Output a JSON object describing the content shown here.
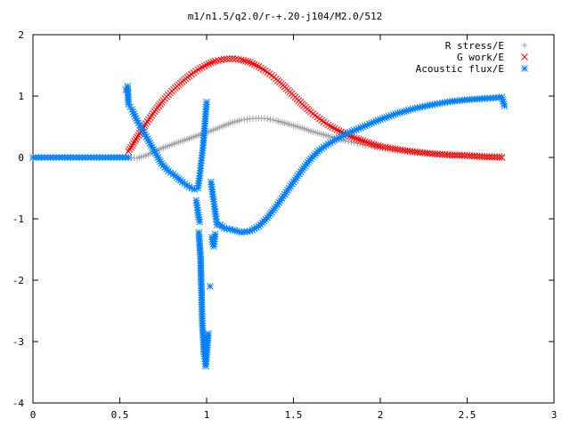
{
  "chart_data": {
    "type": "scatter",
    "title": "m1/n1.5/q2.0/r-+.20-j104/M2.0/512",
    "xlabel": "",
    "ylabel": "",
    "xlim": [
      0,
      3
    ],
    "ylim": [
      -4,
      2
    ],
    "x_ticks": [
      "0",
      "0.5",
      "1",
      "1.5",
      "2",
      "2.5",
      "3"
    ],
    "y_ticks": [
      "2",
      "1",
      "0",
      "-1",
      "-2",
      "-3",
      "-4"
    ],
    "grid": false,
    "legend_position": "top-right",
    "series": [
      {
        "name": "R stress/E",
        "marker": "plus",
        "color": "#a0a0a0",
        "points": [
          [
            0.55,
            0.0
          ],
          [
            0.6,
            -0.01
          ],
          [
            0.65,
            0.03
          ],
          [
            0.7,
            0.1
          ],
          [
            0.75,
            0.16
          ],
          [
            0.8,
            0.21
          ],
          [
            0.85,
            0.26
          ],
          [
            0.9,
            0.31
          ],
          [
            0.95,
            0.36
          ],
          [
            1.0,
            0.41
          ],
          [
            1.05,
            0.46
          ],
          [
            1.1,
            0.52
          ],
          [
            1.15,
            0.57
          ],
          [
            1.2,
            0.61
          ],
          [
            1.25,
            0.63
          ],
          [
            1.3,
            0.64
          ],
          [
            1.35,
            0.63
          ],
          [
            1.4,
            0.6
          ],
          [
            1.45,
            0.56
          ],
          [
            1.5,
            0.52
          ],
          [
            1.55,
            0.48
          ],
          [
            1.6,
            0.43
          ],
          [
            1.65,
            0.39
          ],
          [
            1.7,
            0.35
          ],
          [
            1.75,
            0.31
          ],
          [
            1.8,
            0.27
          ],
          [
            1.85,
            0.24
          ],
          [
            1.9,
            0.21
          ],
          [
            1.95,
            0.18
          ],
          [
            2.0,
            0.15
          ],
          [
            2.1,
            0.12
          ],
          [
            2.2,
            0.09
          ],
          [
            2.3,
            0.07
          ],
          [
            2.4,
            0.05
          ],
          [
            2.5,
            0.04
          ],
          [
            2.6,
            0.03
          ],
          [
            2.7,
            0.02
          ]
        ]
      },
      {
        "name": "G work/E",
        "marker": "cross",
        "color": "#ff0000",
        "points": [
          [
            0.55,
            0.1
          ],
          [
            0.6,
            0.33
          ],
          [
            0.65,
            0.55
          ],
          [
            0.7,
            0.75
          ],
          [
            0.75,
            0.93
          ],
          [
            0.8,
            1.08
          ],
          [
            0.85,
            1.21
          ],
          [
            0.9,
            1.33
          ],
          [
            0.95,
            1.43
          ],
          [
            1.0,
            1.51
          ],
          [
            1.05,
            1.57
          ],
          [
            1.1,
            1.6
          ],
          [
            1.15,
            1.61
          ],
          [
            1.2,
            1.59
          ],
          [
            1.25,
            1.55
          ],
          [
            1.3,
            1.48
          ],
          [
            1.35,
            1.39
          ],
          [
            1.4,
            1.28
          ],
          [
            1.45,
            1.15
          ],
          [
            1.5,
            1.01
          ],
          [
            1.55,
            0.87
          ],
          [
            1.6,
            0.74
          ],
          [
            1.65,
            0.63
          ],
          [
            1.7,
            0.53
          ],
          [
            1.75,
            0.45
          ],
          [
            1.8,
            0.38
          ],
          [
            1.85,
            0.32
          ],
          [
            1.9,
            0.27
          ],
          [
            1.95,
            0.22
          ],
          [
            2.0,
            0.18
          ],
          [
            2.1,
            0.13
          ],
          [
            2.2,
            0.09
          ],
          [
            2.3,
            0.06
          ],
          [
            2.4,
            0.04
          ],
          [
            2.5,
            0.03
          ],
          [
            2.6,
            0.01
          ],
          [
            2.7,
            0.0
          ]
        ]
      },
      {
        "name": "Acoustic flux/E",
        "marker": "star",
        "color": "#0080ff",
        "points": [
          [
            0.0,
            0.0
          ],
          [
            0.05,
            0.0
          ],
          [
            0.1,
            0.0
          ],
          [
            0.15,
            0.0
          ],
          [
            0.2,
            0.0
          ],
          [
            0.25,
            0.0
          ],
          [
            0.3,
            0.0
          ],
          [
            0.35,
            0.0
          ],
          [
            0.4,
            0.0
          ],
          [
            0.45,
            0.0
          ],
          [
            0.5,
            0.0
          ],
          [
            0.55,
            0.0
          ],
          [
            0.535,
            1.1
          ],
          [
            0.545,
            1.16
          ],
          [
            0.55,
            0.87
          ],
          [
            0.57,
            0.78
          ],
          [
            0.6,
            0.6
          ],
          [
            0.63,
            0.45
          ],
          [
            0.66,
            0.3
          ],
          [
            0.7,
            0.1
          ],
          [
            0.74,
            -0.1
          ],
          [
            0.78,
            -0.22
          ],
          [
            0.82,
            -0.3
          ],
          [
            0.86,
            -0.4
          ],
          [
            0.9,
            -0.48
          ],
          [
            0.93,
            -0.52
          ],
          [
            0.95,
            -0.5
          ],
          [
            0.96,
            -0.3
          ],
          [
            0.97,
            -0.05
          ],
          [
            0.98,
            0.2
          ],
          [
            0.99,
            0.55
          ],
          [
            1.0,
            0.9
          ],
          [
            0.94,
            -0.7
          ],
          [
            0.95,
            -0.9
          ],
          [
            0.96,
            -1.05
          ],
          [
            0.955,
            -1.22
          ],
          [
            0.965,
            -1.62
          ],
          [
            0.97,
            -2.13
          ],
          [
            0.975,
            -2.7
          ],
          [
            0.985,
            -3.2
          ],
          [
            0.995,
            -3.4
          ],
          [
            1.01,
            -2.87
          ],
          [
            1.02,
            -2.1
          ],
          [
            1.03,
            -1.3
          ],
          [
            1.04,
            -1.45
          ],
          [
            1.05,
            -1.25
          ],
          [
            1.025,
            -0.4
          ],
          [
            1.035,
            -0.6
          ],
          [
            1.045,
            -0.8
          ],
          [
            1.055,
            -1.0
          ],
          [
            1.06,
            -1.1
          ],
          [
            1.08,
            -1.1
          ],
          [
            1.1,
            -1.15
          ],
          [
            1.15,
            -1.18
          ],
          [
            1.2,
            -1.22
          ],
          [
            1.25,
            -1.2
          ],
          [
            1.3,
            -1.12
          ],
          [
            1.35,
            -0.98
          ],
          [
            1.4,
            -0.8
          ],
          [
            1.45,
            -0.6
          ],
          [
            1.5,
            -0.4
          ],
          [
            1.55,
            -0.2
          ],
          [
            1.6,
            -0.02
          ],
          [
            1.65,
            0.12
          ],
          [
            1.7,
            0.22
          ],
          [
            1.75,
            0.3
          ],
          [
            1.8,
            0.38
          ],
          [
            1.85,
            0.44
          ],
          [
            1.9,
            0.5
          ],
          [
            1.95,
            0.56
          ],
          [
            2.0,
            0.62
          ],
          [
            2.1,
            0.72
          ],
          [
            2.2,
            0.8
          ],
          [
            2.3,
            0.86
          ],
          [
            2.4,
            0.91
          ],
          [
            2.5,
            0.94
          ],
          [
            2.6,
            0.96
          ],
          [
            2.65,
            0.97
          ],
          [
            2.7,
            0.98
          ],
          [
            2.715,
            0.84
          ]
        ]
      }
    ]
  }
}
